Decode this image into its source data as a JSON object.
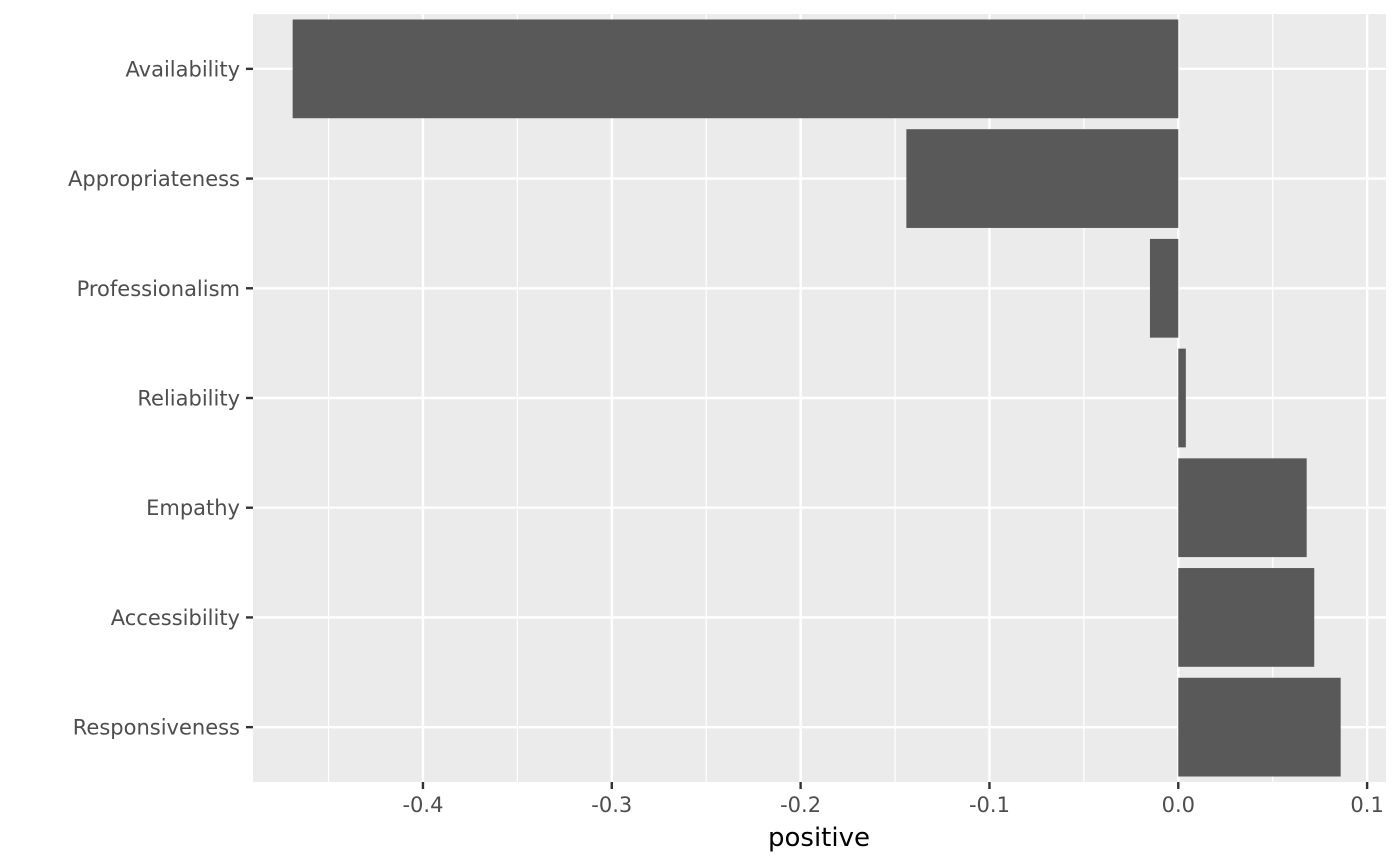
{
  "chart_data": {
    "type": "bar",
    "orientation": "horizontal",
    "categories": [
      "Availability",
      "Appropriateness",
      "Professionalism",
      "Reliability",
      "Empathy",
      "Accessibility",
      "Responsiveness"
    ],
    "values": [
      -0.469,
      -0.144,
      -0.015,
      0.004,
      0.068,
      0.072,
      0.086
    ],
    "xlabel": "positive",
    "ylabel": "",
    "xlim": [
      -0.49,
      0.11
    ],
    "xticks": [
      -0.4,
      -0.3,
      -0.2,
      -0.1,
      0.0,
      0.1
    ],
    "xtick_labels": [
      "-0.4",
      "-0.3",
      "-0.2",
      "-0.1",
      "0.0",
      "0.1"
    ],
    "grid": true,
    "colors": {
      "panel_background": "#ebebeb",
      "grid": "#ffffff",
      "bar": "#595959",
      "tick_text": "#4d4d4d",
      "tick_mark": "#333333",
      "title_text": "#000000"
    }
  }
}
